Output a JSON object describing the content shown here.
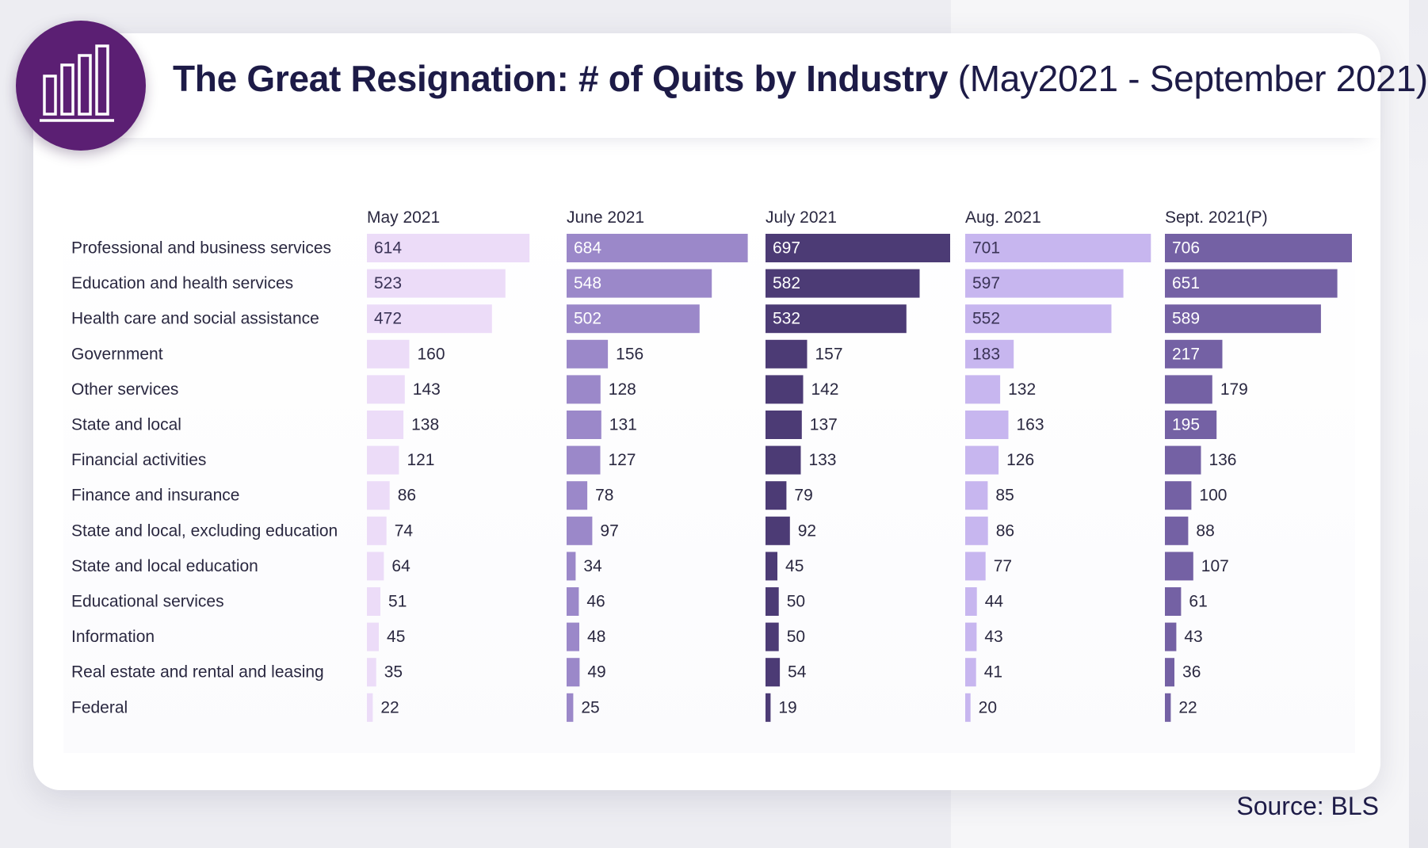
{
  "title": {
    "bold": "The Great Resignation: # of Quits by Industry",
    "range": "(May2021 - September 2021)"
  },
  "source": "Source: BLS",
  "logo": {
    "icon": "bar-chart-icon",
    "color": "#5b1f73"
  },
  "chart_data": {
    "type": "bar",
    "orientation": "horizontal",
    "title": "The Great Resignation: # of Quits by Industry (May2021 - September 2021)",
    "categories": [
      "Professional and business services",
      "Education and health services",
      "Health care and social assistance",
      "Government",
      "Other services",
      "State and local",
      "Financial activities",
      "Finance and insurance",
      "State and local, excluding education",
      "State and local education",
      "Educational services",
      "Information",
      "Real estate and rental and leasing",
      "Federal"
    ],
    "series": [
      {
        "name": "May 2021",
        "color": "#ecdcf8",
        "label_inside_color": "#3a3356",
        "values": [
          614,
          523,
          472,
          160,
          143,
          138,
          121,
          86,
          74,
          64,
          51,
          45,
          35,
          22
        ]
      },
      {
        "name": "June 2021",
        "color": "#9b88c9",
        "label_inside_color": "#ffffff",
        "values": [
          684,
          548,
          502,
          156,
          128,
          131,
          127,
          78,
          97,
          34,
          46,
          48,
          49,
          25
        ]
      },
      {
        "name": "July 2021",
        "color": "#4c3b75",
        "label_inside_color": "#ffffff",
        "values": [
          697,
          582,
          532,
          157,
          142,
          137,
          133,
          79,
          92,
          45,
          50,
          50,
          54,
          19
        ]
      },
      {
        "name": "Aug. 2021",
        "color": "#c7b6ef",
        "label_inside_color": "#3a3356",
        "values": [
          701,
          597,
          552,
          183,
          132,
          163,
          126,
          85,
          86,
          77,
          44,
          43,
          41,
          20
        ]
      },
      {
        "name": "Sept. 2021(P)",
        "color": "#7461a4",
        "label_inside_color": "#ffffff",
        "values": [
          706,
          651,
          589,
          217,
          179,
          195,
          136,
          100,
          88,
          107,
          61,
          43,
          36,
          22
        ]
      }
    ],
    "xlim": [
      0,
      706
    ],
    "label_outside_color": "#2a2840",
    "inside_label_min": 180,
    "grid": false,
    "legend": "column headers"
  }
}
